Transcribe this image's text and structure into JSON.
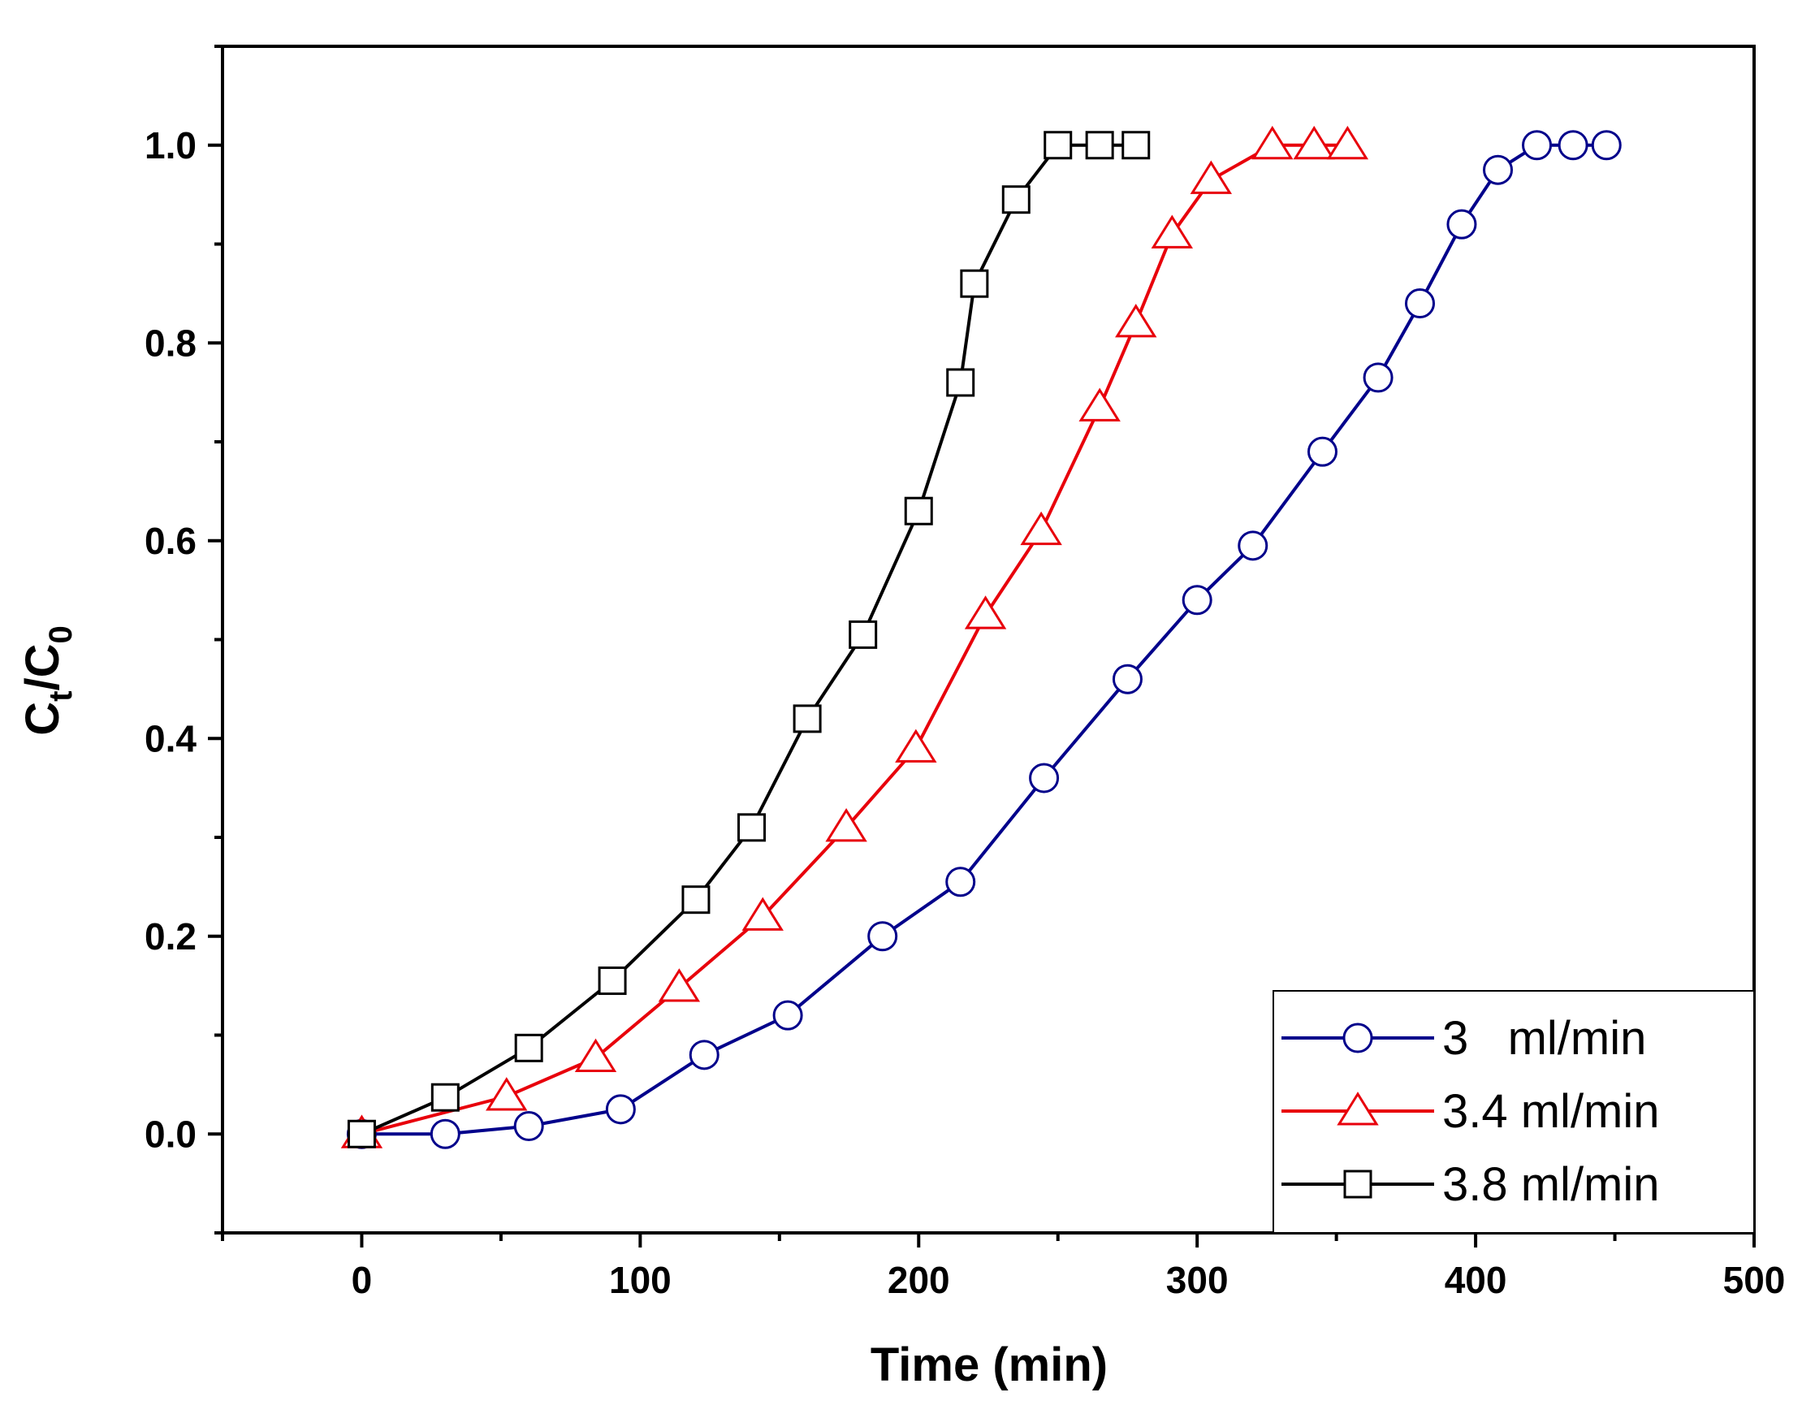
{
  "chart_data": {
    "type": "line",
    "title": "",
    "xlabel": "Time (min)",
    "ylabel": {
      "base": "C",
      "sub1": "t",
      "mid": "/C",
      "sub2": "0"
    },
    "xlim": [
      -50,
      500
    ],
    "ylim": [
      -0.1,
      1.1
    ],
    "xticks": [
      0,
      100,
      200,
      300,
      400,
      500
    ],
    "xtick_labels": [
      "0",
      "100",
      "200",
      "300",
      "400",
      "500"
    ],
    "yticks": [
      0.0,
      0.2,
      0.4,
      0.6,
      0.8,
      1.0
    ],
    "ytick_labels": [
      "0.0",
      "0.2",
      "0.4",
      "0.6",
      "0.8",
      "1.0"
    ],
    "legend_position": "bottom-right",
    "series": [
      {
        "name": "3   ml/min",
        "color": "#00008b",
        "marker": "circle",
        "x": [
          0,
          30,
          60,
          93,
          123,
          153,
          187,
          215,
          245,
          275,
          300,
          320,
          345,
          365,
          380,
          395,
          408,
          422,
          435,
          447
        ],
        "y": [
          0.0,
          0.0,
          0.008,
          0.025,
          0.08,
          0.12,
          0.2,
          0.255,
          0.36,
          0.46,
          0.54,
          0.595,
          0.69,
          0.765,
          0.84,
          0.92,
          0.975,
          1.0,
          1.0,
          1.0
        ]
      },
      {
        "name": "3.4 ml/min",
        "color": "#e8000b",
        "marker": "triangle",
        "x": [
          0,
          52,
          84,
          114,
          144,
          174,
          199,
          224,
          244,
          265,
          278,
          291,
          305,
          327,
          342,
          354
        ],
        "y": [
          0.0,
          0.038,
          0.077,
          0.148,
          0.22,
          0.31,
          0.39,
          0.525,
          0.61,
          0.735,
          0.82,
          0.91,
          0.965,
          1.0,
          1.0,
          1.0
        ]
      },
      {
        "name": "3.8 ml/min",
        "color": "#000000",
        "marker": "square",
        "x": [
          0,
          30,
          60,
          90,
          120,
          140,
          160,
          180,
          200,
          215,
          220,
          235,
          250,
          265,
          278
        ],
        "y": [
          0.0,
          0.037,
          0.087,
          0.155,
          0.237,
          0.31,
          0.42,
          0.505,
          0.63,
          0.76,
          0.86,
          0.945,
          1.0,
          1.0,
          1.0
        ]
      }
    ]
  }
}
